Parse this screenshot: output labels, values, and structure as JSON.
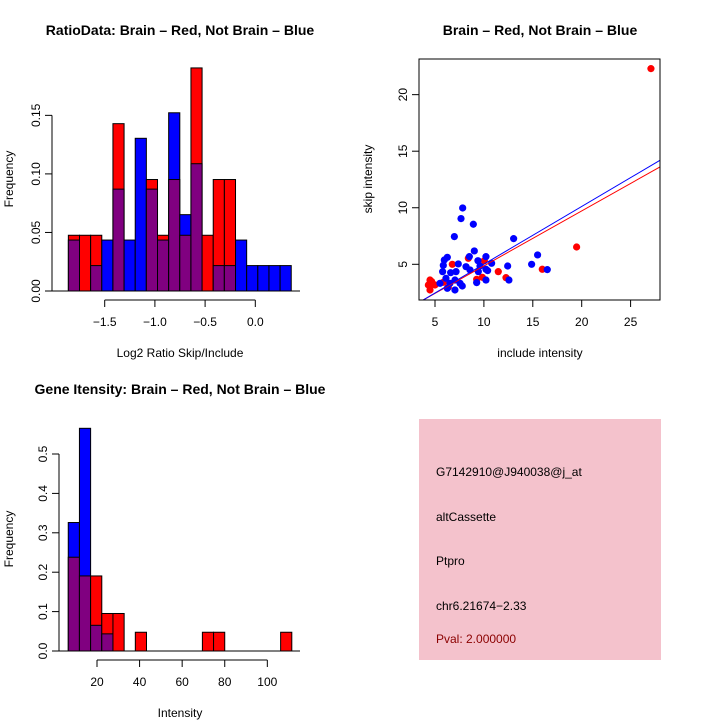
{
  "chart_data": [
    {
      "type": "bar",
      "subtype": "overlaid-histogram",
      "title": "RatioData: Brain – Red, Not Brain – Blue",
      "xlabel": "Log2 Ratio Skip/Include",
      "ylabel": "Frequency",
      "bin_start": -1.862,
      "bin_width": 0.111,
      "xticks": [
        -1.5,
        -1.0,
        -0.5,
        0.0
      ],
      "xtick_labels": [
        "−1.5",
        "−1.0",
        "−0.5",
        "0.0"
      ],
      "yticks": [
        0,
        0.05,
        0.1,
        0.15
      ],
      "ytick_labels": [
        "0.00",
        "0.05",
        "0.10",
        "0.15"
      ],
      "series": [
        {
          "name": "Brain",
          "color": "#ff0000",
          "values": [
            0.0476,
            0.0476,
            0.0476,
            0,
            0.1429,
            0,
            0,
            0.0952,
            0.0476,
            0.0952,
            0.0476,
            0.1905,
            0.0476,
            0.0952,
            0.0952,
            0,
            0,
            0,
            0,
            0
          ]
        },
        {
          "name": "Not Brain",
          "color": "#0000ff",
          "values": [
            0.0435,
            0,
            0.0217,
            0.0435,
            0.087,
            0.0435,
            0.1304,
            0.087,
            0.0435,
            0.1522,
            0.0652,
            0.1087,
            0,
            0.0217,
            0.0217,
            0.0435,
            0.0217,
            0.0217,
            0.0217,
            0.0217
          ]
        }
      ],
      "overlap_color": "#800080"
    },
    {
      "type": "scatter",
      "title": "Brain – Red, Not Brain – Blue",
      "xlabel": "include intensity",
      "ylabel": "skip intensity",
      "xlim": [
        3.4,
        28
      ],
      "ylim": [
        1.85,
        23.1
      ],
      "xticks": [
        5,
        10,
        15,
        20,
        25
      ],
      "xtick_labels": [
        "5",
        "10",
        "15",
        "20",
        "25"
      ],
      "yticks": [
        5,
        10,
        15,
        20
      ],
      "ytick_labels": [
        "5",
        "10",
        "15",
        "20"
      ],
      "series": [
        {
          "name": "Brain",
          "color": "#ff0000",
          "points": [
            [
              27.08,
              22.3
            ],
            [
              19.48,
              6.53
            ],
            [
              15.97,
              4.56
            ],
            [
              11.47,
              4.35
            ],
            [
              12.26,
              3.82
            ],
            [
              10.04,
              5.32
            ],
            [
              8.41,
              5.53
            ],
            [
              6.77,
              5.0
            ],
            [
              9.84,
              3.85
            ],
            [
              9.26,
              3.67
            ],
            [
              5.85,
              3.41
            ],
            [
              6.36,
              2.97
            ],
            [
              4.49,
              3.61
            ],
            [
              4.32,
              3.17
            ],
            [
              4.83,
              3.23
            ],
            [
              4.49,
              2.73
            ],
            [
              4.66,
              3.47
            ],
            [
              5.0,
              3.17
            ]
          ],
          "fit": {
            "slope": 0.486,
            "intercept": 0.0
          }
        },
        {
          "name": "Not Brain",
          "color": "#0000ff",
          "points": [
            [
              7.83,
              9.98
            ],
            [
              7.66,
              9.04
            ],
            [
              8.92,
              8.54
            ],
            [
              6.98,
              7.45
            ],
            [
              13.04,
              7.27
            ],
            [
              9.02,
              6.18
            ],
            [
              15.49,
              5.83
            ],
            [
              14.88,
              5.0
            ],
            [
              16.48,
              4.53
            ],
            [
              12.43,
              4.85
            ],
            [
              12.56,
              3.61
            ],
            [
              10.21,
              5.68
            ],
            [
              9.39,
              5.32
            ],
            [
              8.51,
              5.68
            ],
            [
              6.26,
              5.62
            ],
            [
              5.95,
              5.38
            ],
            [
              5.85,
              4.91
            ],
            [
              5.78,
              4.35
            ],
            [
              6.6,
              4.26
            ],
            [
              7.38,
              5.03
            ],
            [
              7.15,
              4.35
            ],
            [
              8.17,
              4.79
            ],
            [
              8.58,
              4.5
            ],
            [
              9.43,
              4.35
            ],
            [
              9.6,
              4.85
            ],
            [
              10.21,
              4.56
            ],
            [
              10.79,
              5.09
            ],
            [
              10.38,
              4.44
            ],
            [
              10.21,
              3.61
            ],
            [
              9.26,
              3.38
            ],
            [
              6.12,
              3.76
            ],
            [
              7.04,
              3.61
            ],
            [
              7.56,
              3.32
            ],
            [
              7.04,
              2.73
            ],
            [
              7.79,
              3.08
            ],
            [
              6.26,
              2.88
            ],
            [
              6.53,
              3.32
            ],
            [
              5.51,
              3.32
            ]
          ],
          "fit": {
            "slope": 0.51,
            "intercept": -0.09
          }
        }
      ]
    },
    {
      "type": "bar",
      "subtype": "overlaid-histogram",
      "title": "Gene Itensity: Brain – Red, Not Brain – Blue",
      "xlabel": "Intensity",
      "ylabel": "Frequency",
      "bin_start": 6.5,
      "bin_width": 5.25,
      "xticks": [
        20,
        40,
        60,
        80,
        100
      ],
      "xtick_labels": [
        "20",
        "40",
        "60",
        "80",
        "100"
      ],
      "yticks": [
        0,
        0.1,
        0.2,
        0.3,
        0.4,
        0.5
      ],
      "ytick_labels": [
        "0.0",
        "0.1",
        "0.2",
        "0.3",
        "0.4",
        "0.5"
      ],
      "series": [
        {
          "name": "Brain",
          "color": "#ff0000",
          "values": [
            0.238,
            0.1905,
            0.1905,
            0.0952,
            0.0952,
            0,
            0.0476,
            0,
            0,
            0,
            0,
            0,
            0.0476,
            0.0476,
            0,
            0,
            0,
            0,
            0,
            0.0476
          ]
        },
        {
          "name": "Not Brain",
          "color": "#0000ff",
          "values": [
            0.3261,
            0.5652,
            0.0652,
            0.0435,
            0,
            0,
            0,
            0,
            0,
            0,
            0,
            0,
            0,
            0,
            0,
            0,
            0,
            0,
            0,
            0
          ]
        }
      ],
      "overlap_color": "#800080"
    }
  ],
  "info_panel": {
    "background": "#f4c2cc",
    "probe_id": "G7142910@J940038@j_at",
    "event_type": "altCassette",
    "gene": "Ptpro",
    "location": "chr6.21674−2.33",
    "pval": "Pval: 2.000000",
    "pval_color": "#8b0000"
  }
}
